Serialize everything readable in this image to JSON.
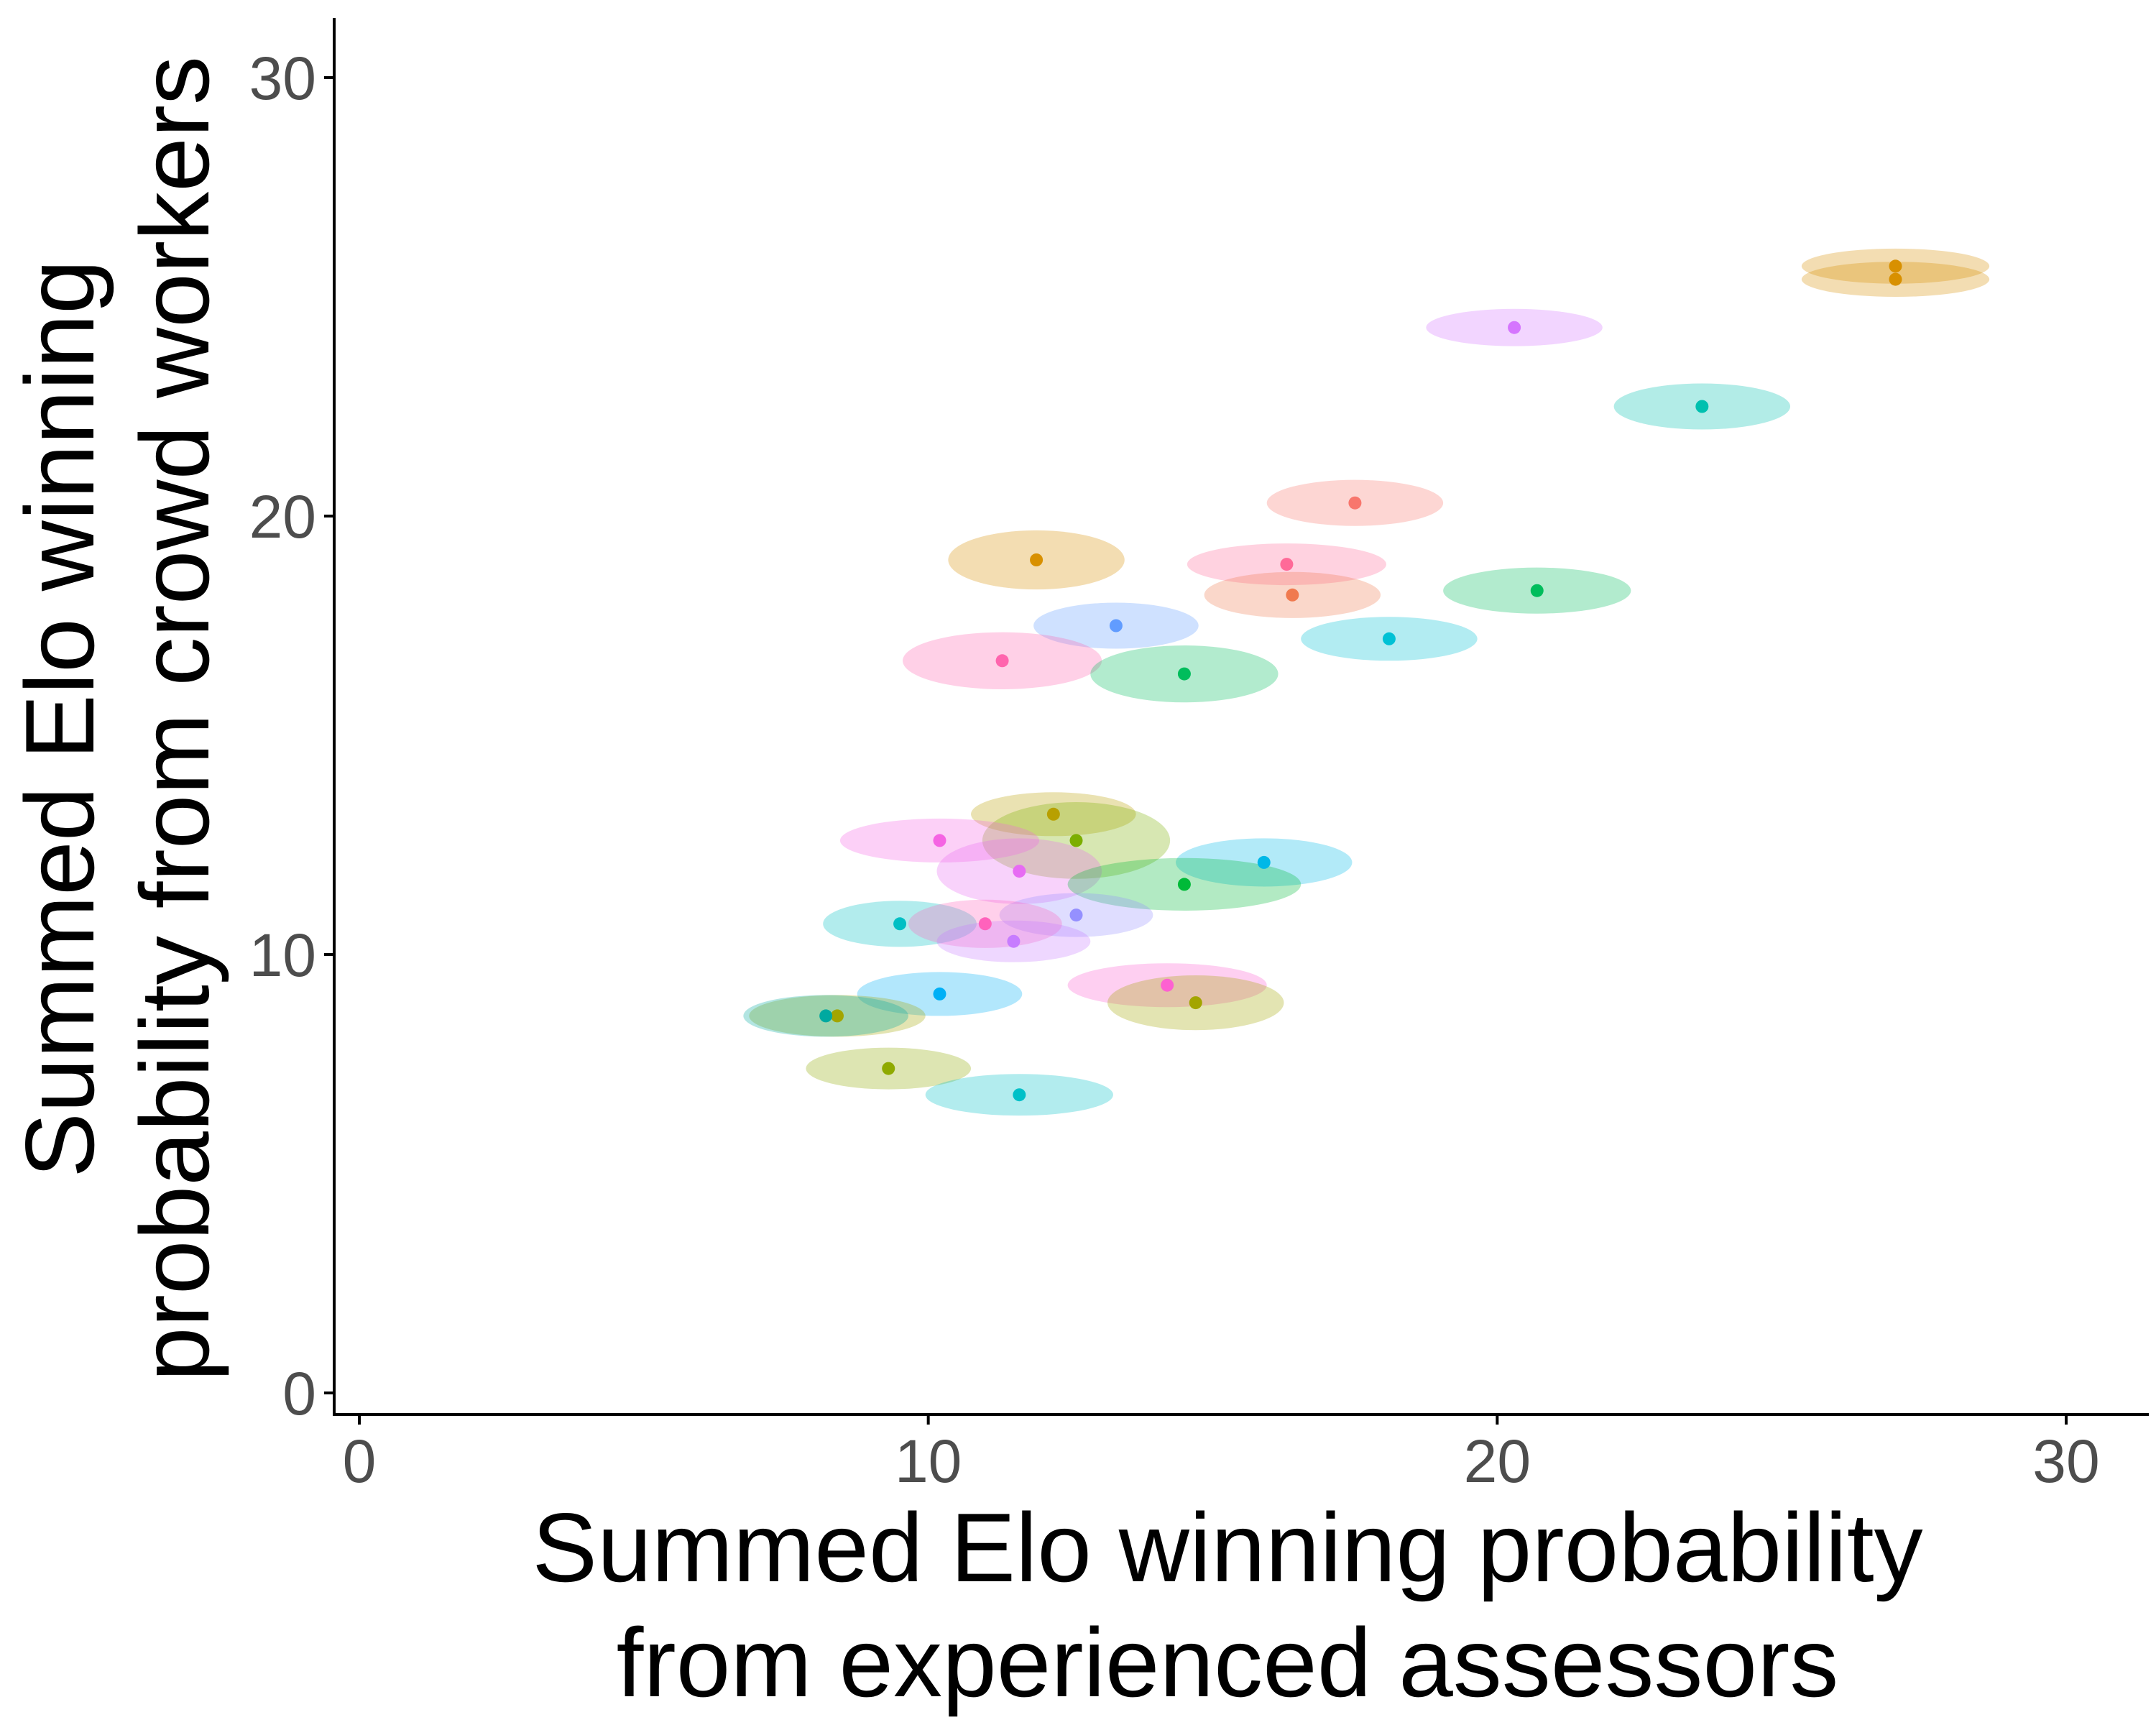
{
  "chart_data": {
    "type": "scatter",
    "title": "",
    "xlabel": [
      "Summed Elo winning probability",
      "from experienced assessors"
    ],
    "ylabel": [
      "Summed Elo winning",
      "probability from crowd workers"
    ],
    "xlim": [
      -0.5,
      31.5
    ],
    "ylim": [
      -0.5,
      31.5
    ],
    "x_ticks": [
      0,
      10,
      20,
      30
    ],
    "y_ticks": [
      0,
      10,
      20,
      30
    ],
    "x_tick_labels": [
      "0",
      "10",
      "20",
      "30"
    ],
    "y_tick_labels": [
      "0",
      "10",
      "20",
      "30"
    ],
    "grid": false,
    "legend": "none",
    "points": [
      {
        "x": 27.0,
        "y": 25.7,
        "rx": 1.65,
        "ry": 0.8,
        "color": "#D89000"
      },
      {
        "x": 27.0,
        "y": 25.4,
        "rx": 1.65,
        "ry": 0.8,
        "color": "#D89000"
      },
      {
        "x": 20.3,
        "y": 24.3,
        "rx": 1.55,
        "ry": 0.85,
        "color": "#D575FE"
      },
      {
        "x": 23.6,
        "y": 22.5,
        "rx": 1.55,
        "ry": 1.05,
        "color": "#00C0AF"
      },
      {
        "x": 17.5,
        "y": 20.3,
        "rx": 1.55,
        "ry": 1.05,
        "color": "#F8766D"
      },
      {
        "x": 11.9,
        "y": 19.0,
        "rx": 1.55,
        "ry": 1.35,
        "color": "#D89000"
      },
      {
        "x": 16.3,
        "y": 18.9,
        "rx": 1.75,
        "ry": 0.95,
        "color": "#FF6A98"
      },
      {
        "x": 16.4,
        "y": 18.2,
        "rx": 1.55,
        "ry": 1.05,
        "color": "#F07A4F"
      },
      {
        "x": 20.7,
        "y": 18.3,
        "rx": 1.65,
        "ry": 1.05,
        "color": "#00BD5C"
      },
      {
        "x": 13.3,
        "y": 17.5,
        "rx": 1.45,
        "ry": 1.05,
        "color": "#619CFF"
      },
      {
        "x": 18.1,
        "y": 17.2,
        "rx": 1.55,
        "ry": 1.0,
        "color": "#00C1D5"
      },
      {
        "x": 11.3,
        "y": 16.7,
        "rx": 1.75,
        "ry": 1.3,
        "color": "#FF65AE"
      },
      {
        "x": 14.5,
        "y": 16.4,
        "rx": 1.65,
        "ry": 1.3,
        "color": "#00BD5C"
      },
      {
        "x": 12.2,
        "y": 13.2,
        "rx": 1.45,
        "ry": 1.0,
        "color": "#B8A000"
      },
      {
        "x": 12.6,
        "y": 12.6,
        "rx": 1.65,
        "ry": 1.75,
        "color": "#7CAE00"
      },
      {
        "x": 10.2,
        "y": 12.6,
        "rx": 1.75,
        "ry": 1.0,
        "color": "#F564E3"
      },
      {
        "x": 15.9,
        "y": 12.1,
        "rx": 1.55,
        "ry": 1.1,
        "color": "#00B8E7"
      },
      {
        "x": 11.6,
        "y": 11.9,
        "rx": 1.45,
        "ry": 1.5,
        "color": "#E76BF3"
      },
      {
        "x": 14.5,
        "y": 11.6,
        "rx": 2.05,
        "ry": 1.2,
        "color": "#00BA38"
      },
      {
        "x": 12.6,
        "y": 10.9,
        "rx": 1.35,
        "ry": 1.0,
        "color": "#9590FF"
      },
      {
        "x": 9.5,
        "y": 10.7,
        "rx": 1.35,
        "ry": 1.05,
        "color": "#00BFC4"
      },
      {
        "x": 11.0,
        "y": 10.7,
        "rx": 1.35,
        "ry": 1.1,
        "color": "#FF62BC"
      },
      {
        "x": 11.5,
        "y": 10.3,
        "rx": 1.35,
        "ry": 0.95,
        "color": "#C77CFF"
      },
      {
        "x": 14.2,
        "y": 9.3,
        "rx": 1.75,
        "ry": 1.0,
        "color": "#FD61D1"
      },
      {
        "x": 14.7,
        "y": 8.9,
        "rx": 1.55,
        "ry": 1.25,
        "color": "#A3A500"
      },
      {
        "x": 10.2,
        "y": 9.1,
        "rx": 1.45,
        "ry": 1.0,
        "color": "#00B0F6"
      },
      {
        "x": 8.4,
        "y": 8.6,
        "rx": 1.55,
        "ry": 0.95,
        "color": "#A3A500"
      },
      {
        "x": 8.2,
        "y": 8.6,
        "rx": 1.45,
        "ry": 0.95,
        "color": "#00A9A0"
      },
      {
        "x": 9.3,
        "y": 7.4,
        "rx": 1.45,
        "ry": 0.95,
        "color": "#8FAA00"
      },
      {
        "x": 11.6,
        "y": 6.8,
        "rx": 1.65,
        "ry": 0.95,
        "color": "#00C0C8"
      }
    ]
  }
}
